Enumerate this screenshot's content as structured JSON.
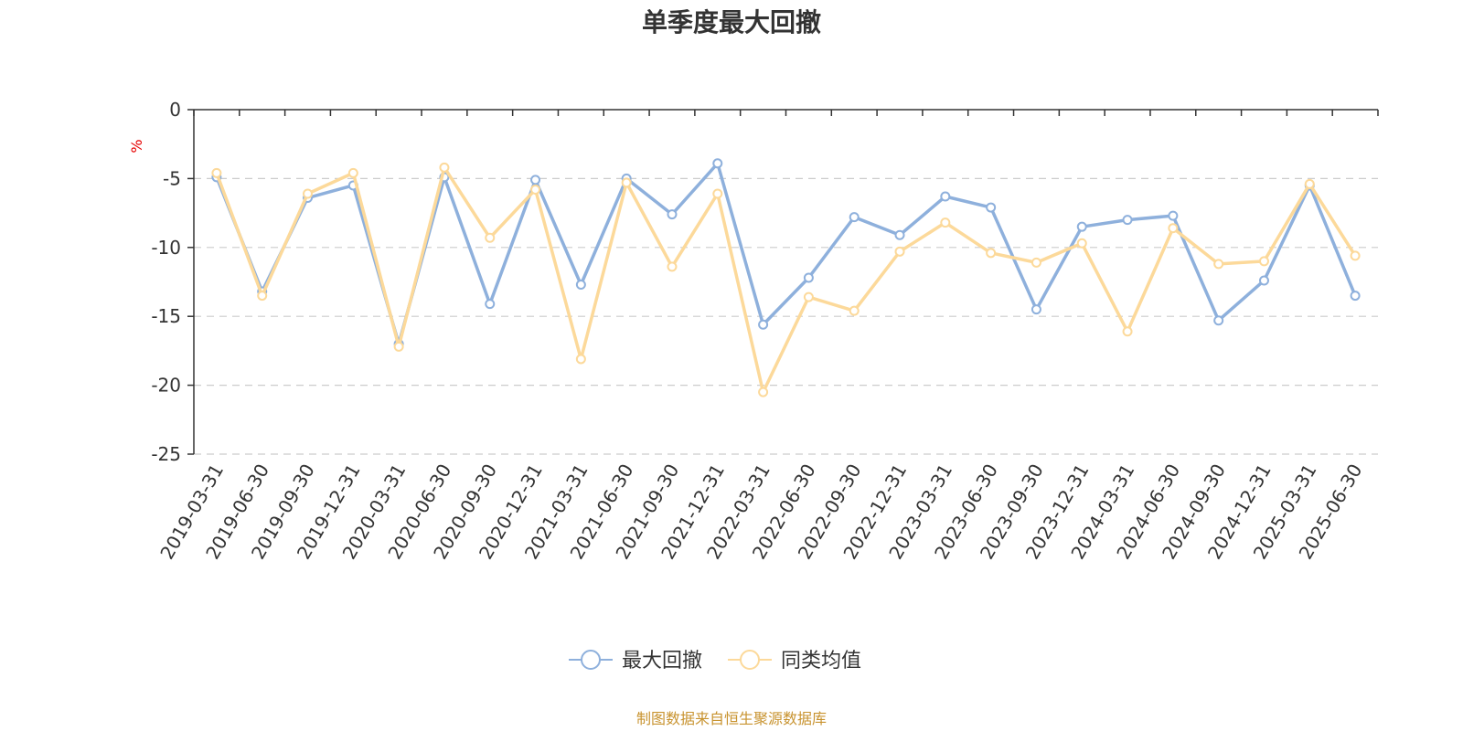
{
  "chart_data": {
    "type": "line",
    "title": "单季度最大回撤",
    "ylabel": "%",
    "ylim": [
      -25,
      0
    ],
    "yticks": [
      0,
      -5,
      -10,
      -15,
      -20,
      -25
    ],
    "ytick_labels": [
      "0",
      "-5",
      "-10",
      "-15",
      "-20",
      "-25"
    ],
    "grid": true,
    "legend_position": "bottom-center",
    "categories": [
      "2019-03-31",
      "2019-06-30",
      "2019-09-30",
      "2019-12-31",
      "2020-03-31",
      "2020-06-30",
      "2020-09-30",
      "2020-12-31",
      "2021-03-31",
      "2021-06-30",
      "2021-09-30",
      "2021-12-31",
      "2022-03-31",
      "2022-06-30",
      "2022-09-30",
      "2022-12-31",
      "2023-03-31",
      "2023-06-30",
      "2023-09-30",
      "2023-12-31",
      "2024-03-31",
      "2024-06-30",
      "2024-09-30",
      "2024-12-31",
      "2025-03-31",
      "2025-06-30"
    ],
    "series": [
      {
        "name": "最大回撤",
        "color": "#8eb0dc",
        "values": [
          -4.9,
          -13.2,
          -6.4,
          -5.5,
          -17.0,
          -4.9,
          -14.1,
          -5.1,
          -12.7,
          -5.0,
          -7.6,
          -3.9,
          -15.6,
          -12.2,
          -7.8,
          -9.1,
          -6.3,
          -7.1,
          -14.5,
          -8.5,
          -8.0,
          -7.7,
          -15.3,
          -12.4,
          -5.5,
          -13.5
        ]
      },
      {
        "name": "同类均值",
        "color": "#fcd99a",
        "values": [
          -4.6,
          -13.5,
          -6.1,
          -4.6,
          -17.2,
          -4.2,
          -9.3,
          -5.8,
          -18.1,
          -5.3,
          -11.4,
          -6.1,
          -20.5,
          -13.6,
          -14.6,
          -10.3,
          -8.2,
          -10.4,
          -11.1,
          -9.7,
          -16.1,
          -8.6,
          -11.2,
          -11.0,
          -5.4,
          -10.6
        ]
      }
    ],
    "source": "制图数据来自恒生聚源数据库"
  }
}
